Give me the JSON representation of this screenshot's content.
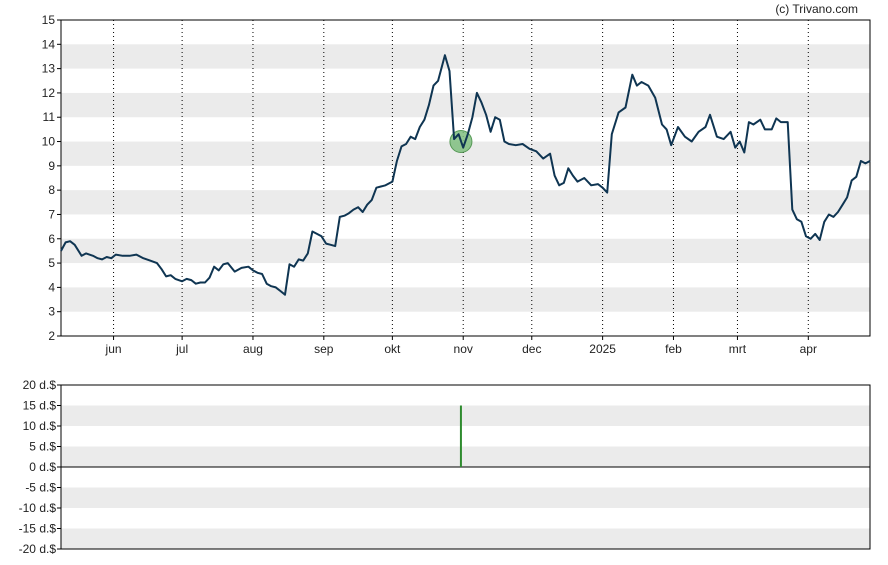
{
  "credit": "(c) Trivano.com",
  "colors": {
    "line": "#0f3552",
    "band": "#ebebeb",
    "marker_fill": "#7fbf7f",
    "marker_stroke": "#3c8a3c",
    "volume_bar": "#2e8b2e",
    "axis": "#000000",
    "grid": "#000000"
  },
  "chart_data": [
    {
      "type": "line",
      "title": "",
      "xlabel": "",
      "ylabel": "",
      "ylim": [
        2,
        15
      ],
      "yticks": [
        2,
        3,
        4,
        5,
        6,
        7,
        8,
        9,
        10,
        11,
        12,
        13,
        14,
        15
      ],
      "xticks": [
        {
          "label": "jun",
          "date": "2024-06-01"
        },
        {
          "label": "jul",
          "date": "2024-07-01"
        },
        {
          "label": "aug",
          "date": "2024-08-01"
        },
        {
          "label": "sep",
          "date": "2024-09-01"
        },
        {
          "label": "okt",
          "date": "2024-10-01"
        },
        {
          "label": "nov",
          "date": "2024-11-01"
        },
        {
          "label": "dec",
          "date": "2024-12-01"
        },
        {
          "label": "2025",
          "date": "2025-01-01"
        },
        {
          "label": "feb",
          "date": "2025-02-01"
        },
        {
          "label": "mrt",
          "date": "2025-03-01"
        },
        {
          "label": "apr",
          "date": "2025-04-01"
        }
      ],
      "xlim": [
        "2024-05-09",
        "2025-04-28"
      ],
      "grid": "vertical dotted at month ticks",
      "marker": {
        "date": "2024-10-31",
        "value": 10.0
      },
      "series": [
        {
          "points": [
            [
              "2024-05-09",
              5.5
            ],
            [
              "2024-05-11",
              5.85
            ],
            [
              "2024-05-13",
              5.9
            ],
            [
              "2024-05-15",
              5.75
            ],
            [
              "2024-05-18",
              5.3
            ],
            [
              "2024-05-20",
              5.4
            ],
            [
              "2024-05-23",
              5.3
            ],
            [
              "2024-05-25",
              5.2
            ],
            [
              "2024-05-27",
              5.15
            ],
            [
              "2024-05-29",
              5.25
            ],
            [
              "2024-05-31",
              5.2
            ],
            [
              "2024-06-02",
              5.35
            ],
            [
              "2024-06-05",
              5.3
            ],
            [
              "2024-06-08",
              5.3
            ],
            [
              "2024-06-11",
              5.35
            ],
            [
              "2024-06-14",
              5.2
            ],
            [
              "2024-06-17",
              5.1
            ],
            [
              "2024-06-20",
              5.0
            ],
            [
              "2024-06-22",
              4.75
            ],
            [
              "2024-06-24",
              4.45
            ],
            [
              "2024-06-26",
              4.5
            ],
            [
              "2024-06-28",
              4.35
            ],
            [
              "2024-07-01",
              4.25
            ],
            [
              "2024-07-03",
              4.35
            ],
            [
              "2024-07-05",
              4.3
            ],
            [
              "2024-07-07",
              4.15
            ],
            [
              "2024-07-09",
              4.2
            ],
            [
              "2024-07-11",
              4.2
            ],
            [
              "2024-07-13",
              4.4
            ],
            [
              "2024-07-15",
              4.85
            ],
            [
              "2024-07-17",
              4.7
            ],
            [
              "2024-07-19",
              4.95
            ],
            [
              "2024-07-21",
              5.0
            ],
            [
              "2024-07-24",
              4.65
            ],
            [
              "2024-07-27",
              4.8
            ],
            [
              "2024-07-30",
              4.85
            ],
            [
              "2024-08-01",
              4.7
            ],
            [
              "2024-08-03",
              4.6
            ],
            [
              "2024-08-05",
              4.55
            ],
            [
              "2024-08-07",
              4.15
            ],
            [
              "2024-08-09",
              4.05
            ],
            [
              "2024-08-11",
              4.0
            ],
            [
              "2024-08-13",
              3.85
            ],
            [
              "2024-08-15",
              3.7
            ],
            [
              "2024-08-17",
              4.95
            ],
            [
              "2024-08-19",
              4.85
            ],
            [
              "2024-08-21",
              5.15
            ],
            [
              "2024-08-23",
              5.1
            ],
            [
              "2024-08-25",
              5.4
            ],
            [
              "2024-08-27",
              6.3
            ],
            [
              "2024-08-29",
              6.2
            ],
            [
              "2024-08-31",
              6.1
            ],
            [
              "2024-09-02",
              5.8
            ],
            [
              "2024-09-04",
              5.75
            ],
            [
              "2024-09-06",
              5.7
            ],
            [
              "2024-09-08",
              6.9
            ],
            [
              "2024-09-10",
              6.95
            ],
            [
              "2024-09-12",
              7.05
            ],
            [
              "2024-09-14",
              7.2
            ],
            [
              "2024-09-16",
              7.3
            ],
            [
              "2024-09-18",
              7.1
            ],
            [
              "2024-09-20",
              7.4
            ],
            [
              "2024-09-22",
              7.6
            ],
            [
              "2024-09-24",
              8.1
            ],
            [
              "2024-09-26",
              8.15
            ],
            [
              "2024-09-28",
              8.2
            ],
            [
              "2024-10-01",
              8.35
            ],
            [
              "2024-10-03",
              9.2
            ],
            [
              "2024-10-05",
              9.8
            ],
            [
              "2024-10-07",
              9.9
            ],
            [
              "2024-10-09",
              10.2
            ],
            [
              "2024-10-11",
              10.1
            ],
            [
              "2024-10-13",
              10.6
            ],
            [
              "2024-10-15",
              10.9
            ],
            [
              "2024-10-17",
              11.5
            ],
            [
              "2024-10-19",
              12.3
            ],
            [
              "2024-10-21",
              12.5
            ],
            [
              "2024-10-24",
              13.55
            ],
            [
              "2024-10-26",
              12.9
            ],
            [
              "2024-10-28",
              10.1
            ],
            [
              "2024-10-30",
              10.3
            ],
            [
              "2024-11-01",
              9.75
            ],
            [
              "2024-11-03",
              10.3
            ],
            [
              "2024-11-05",
              11.0
            ],
            [
              "2024-11-07",
              12.0
            ],
            [
              "2024-11-09",
              11.6
            ],
            [
              "2024-11-11",
              11.1
            ],
            [
              "2024-11-13",
              10.4
            ],
            [
              "2024-11-15",
              11.0
            ],
            [
              "2024-11-17",
              10.9
            ],
            [
              "2024-11-19",
              10.0
            ],
            [
              "2024-11-21",
              9.9
            ],
            [
              "2024-11-24",
              9.85
            ],
            [
              "2024-11-27",
              9.9
            ],
            [
              "2024-11-30",
              9.7
            ],
            [
              "2024-12-03",
              9.6
            ],
            [
              "2024-12-06",
              9.3
            ],
            [
              "2024-12-09",
              9.5
            ],
            [
              "2024-12-11",
              8.6
            ],
            [
              "2024-12-13",
              8.2
            ],
            [
              "2024-12-15",
              8.3
            ],
            [
              "2024-12-17",
              8.9
            ],
            [
              "2024-12-19",
              8.6
            ],
            [
              "2024-12-21",
              8.35
            ],
            [
              "2024-12-24",
              8.5
            ],
            [
              "2024-12-27",
              8.2
            ],
            [
              "2024-12-30",
              8.25
            ],
            [
              "2025-01-01",
              8.1
            ],
            [
              "2025-01-03",
              7.9
            ],
            [
              "2025-01-05",
              10.3
            ],
            [
              "2025-01-08",
              11.2
            ],
            [
              "2025-01-11",
              11.4
            ],
            [
              "2025-01-14",
              12.75
            ],
            [
              "2025-01-16",
              12.3
            ],
            [
              "2025-01-18",
              12.45
            ],
            [
              "2025-01-21",
              12.3
            ],
            [
              "2025-01-24",
              11.8
            ],
            [
              "2025-01-27",
              10.7
            ],
            [
              "2025-01-29",
              10.5
            ],
            [
              "2025-01-31",
              9.85
            ],
            [
              "2025-02-03",
              10.6
            ],
            [
              "2025-02-06",
              10.2
            ],
            [
              "2025-02-09",
              10.0
            ],
            [
              "2025-02-12",
              10.4
            ],
            [
              "2025-02-15",
              10.6
            ],
            [
              "2025-02-17",
              11.1
            ],
            [
              "2025-02-20",
              10.2
            ],
            [
              "2025-02-23",
              10.1
            ],
            [
              "2025-02-26",
              10.4
            ],
            [
              "2025-02-28",
              9.75
            ],
            [
              "2025-03-02",
              10.0
            ],
            [
              "2025-03-04",
              9.55
            ],
            [
              "2025-03-06",
              10.8
            ],
            [
              "2025-03-08",
              10.7
            ],
            [
              "2025-03-11",
              10.9
            ],
            [
              "2025-03-13",
              10.5
            ],
            [
              "2025-03-16",
              10.5
            ],
            [
              "2025-03-18",
              10.95
            ],
            [
              "2025-03-20",
              10.8
            ],
            [
              "2025-03-23",
              10.8
            ],
            [
              "2025-03-25",
              7.2
            ],
            [
              "2025-03-27",
              6.8
            ],
            [
              "2025-03-29",
              6.7
            ],
            [
              "2025-03-31",
              6.1
            ],
            [
              "2025-04-02",
              6.0
            ],
            [
              "2025-04-04",
              6.2
            ],
            [
              "2025-04-06",
              5.95
            ],
            [
              "2025-04-08",
              6.7
            ],
            [
              "2025-04-10",
              7.0
            ],
            [
              "2025-04-12",
              6.9
            ],
            [
              "2025-04-14",
              7.1
            ],
            [
              "2025-04-16",
              7.4
            ],
            [
              "2025-04-18",
              7.7
            ],
            [
              "2025-04-20",
              8.4
            ],
            [
              "2025-04-22",
              8.55
            ],
            [
              "2025-04-24",
              9.2
            ],
            [
              "2025-04-26",
              9.1
            ],
            [
              "2025-04-28",
              9.2
            ]
          ]
        }
      ]
    },
    {
      "type": "bar",
      "title": "",
      "xlabel": "",
      "ylabel": "",
      "ylim": [
        -20,
        20
      ],
      "yticks": [
        {
          "value": 20,
          "label": "20 d.$"
        },
        {
          "value": 15,
          "label": "15 d.$"
        },
        {
          "value": 10,
          "label": "10 d.$"
        },
        {
          "value": 5,
          "label": "5 d.$"
        },
        {
          "value": 0,
          "label": "0 d.$"
        },
        {
          "value": -5,
          "label": "-5 d.$"
        },
        {
          "value": -10,
          "label": "-10 d.$"
        },
        {
          "value": -15,
          "label": "-15 d.$"
        },
        {
          "value": -20,
          "label": "-20 d.$"
        }
      ],
      "bars": [
        {
          "date": "2024-10-31",
          "value": 15
        }
      ]
    }
  ]
}
